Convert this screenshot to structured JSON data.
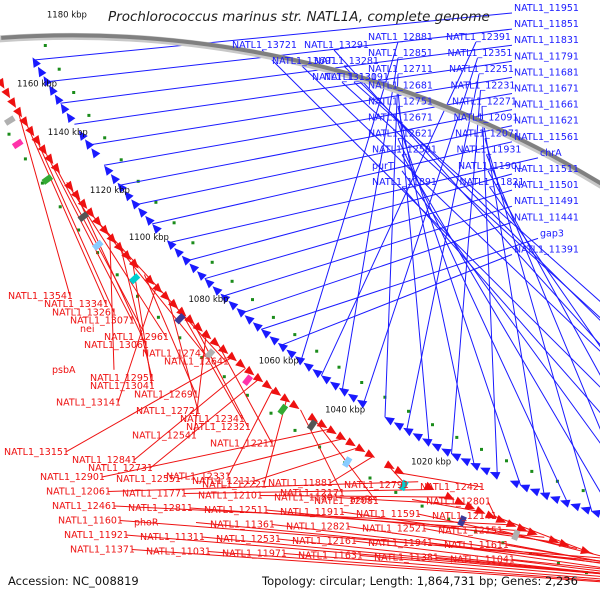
{
  "title": "Prochlorococcus marinus str. NATL1A, complete genome",
  "accession": {
    "label": "Accession:",
    "value": "NC_008819"
  },
  "topology": {
    "label": "Topology:",
    "value": "circular"
  },
  "length": {
    "label": "Length:",
    "value": "1,864,731 bp"
  },
  "genes": {
    "label": "Genes:",
    "value": "2,236"
  },
  "colors": {
    "forward": "#1a1aff",
    "reverse": "#ee1111",
    "backbone": "#808080",
    "tick": "#1a8c1a"
  },
  "scale_labels": [
    "1180 kbp",
    "1160 kbp",
    "1140 kbp",
    "1120 kbp",
    "1100 kbp",
    "1080 kbp",
    "1060 kbp",
    "1040 kbp",
    "1020 kbp"
  ],
  "forward_labels": [
    "NATL1_11951",
    "NATL1_11851",
    "NATL1_11831",
    "NATL1_11791",
    "NATL1_11681",
    "NATL1_11671",
    "NATL1_11661",
    "NATL1_11621",
    "NATL1_11561",
    "chrA",
    "NATL1_11511",
    "NATL1_11501",
    "NATL1_11491",
    "NATL1_11441",
    "gap3",
    "NATL1_11391",
    "NATL1_12881",
    "NATL1_12391",
    "NATL1_12851",
    "NATL1_12351",
    "NATL1_12711",
    "NATL1_12251",
    "NATL1_12681",
    "NATL1_12231",
    "NATL1_12751",
    "NATL1_12271",
    "NATL1_12671",
    "NATL1_12091",
    "NATL1_12621",
    "NATL1_12071",
    "NATL1_12501",
    "NATL1_11931",
    "purT",
    "NATL1_11901",
    "NATL1_11891",
    "NATL1_11821",
    "NATL1_13721",
    "NATL1_13291",
    "NATL1_13691",
    "NATL1_13281",
    "NATL1_13131",
    "NATL1_13091"
  ],
  "reverse_labels": [
    "NATL1_13541",
    "NATL1_13341",
    "NATL1_13261",
    "NATL1_13071",
    "nei",
    "NATL1_12961",
    "NATL1_13061",
    "NATL1_12741",
    "NATL1_12641",
    "psbA",
    "NATL1_12951",
    "NATL1_13041",
    "NATL1_12691",
    "NATL1_13141",
    "NATL1_12721",
    "NATL1_12341",
    "NATL1_12321",
    "NATL1_12541",
    "NATL1_12211",
    "NATL1_13151",
    "NATL1_12841",
    "NATL1_12731",
    "NATL1_12331",
    "NATL1_12221",
    "NATL1_12171",
    "NATL1_12081",
    "NATL1_12901",
    "NATL1_12551",
    "NATL1_12111",
    "NATL1_11881",
    "NATL1_12791",
    "NATL1_12421",
    "NATL1_12061",
    "NATL1_11771",
    "NATL1_12101",
    "NATL1_11801",
    "arsR",
    "NATL1_12801",
    "NATL1_12461",
    "NATL1_12811",
    "NATL1_12511",
    "NATL1_11911",
    "NATL1_11591",
    "NATL1_12141",
    "NATL1_11601",
    "phoR",
    "NATL1_11361",
    "NATL1_12821",
    "NATL1_12521",
    "NATL1_12151",
    "NATL1_11921",
    "NATL1_11311",
    "NATL1_12531",
    "NATL1_12161",
    "NATL1_11941",
    "NATL1_11611",
    "NATL1_11371",
    "NATL1_11031",
    "NATL1_11971",
    "NATL1_11631",
    "NATL1_11381",
    "NATL1_11041"
  ]
}
